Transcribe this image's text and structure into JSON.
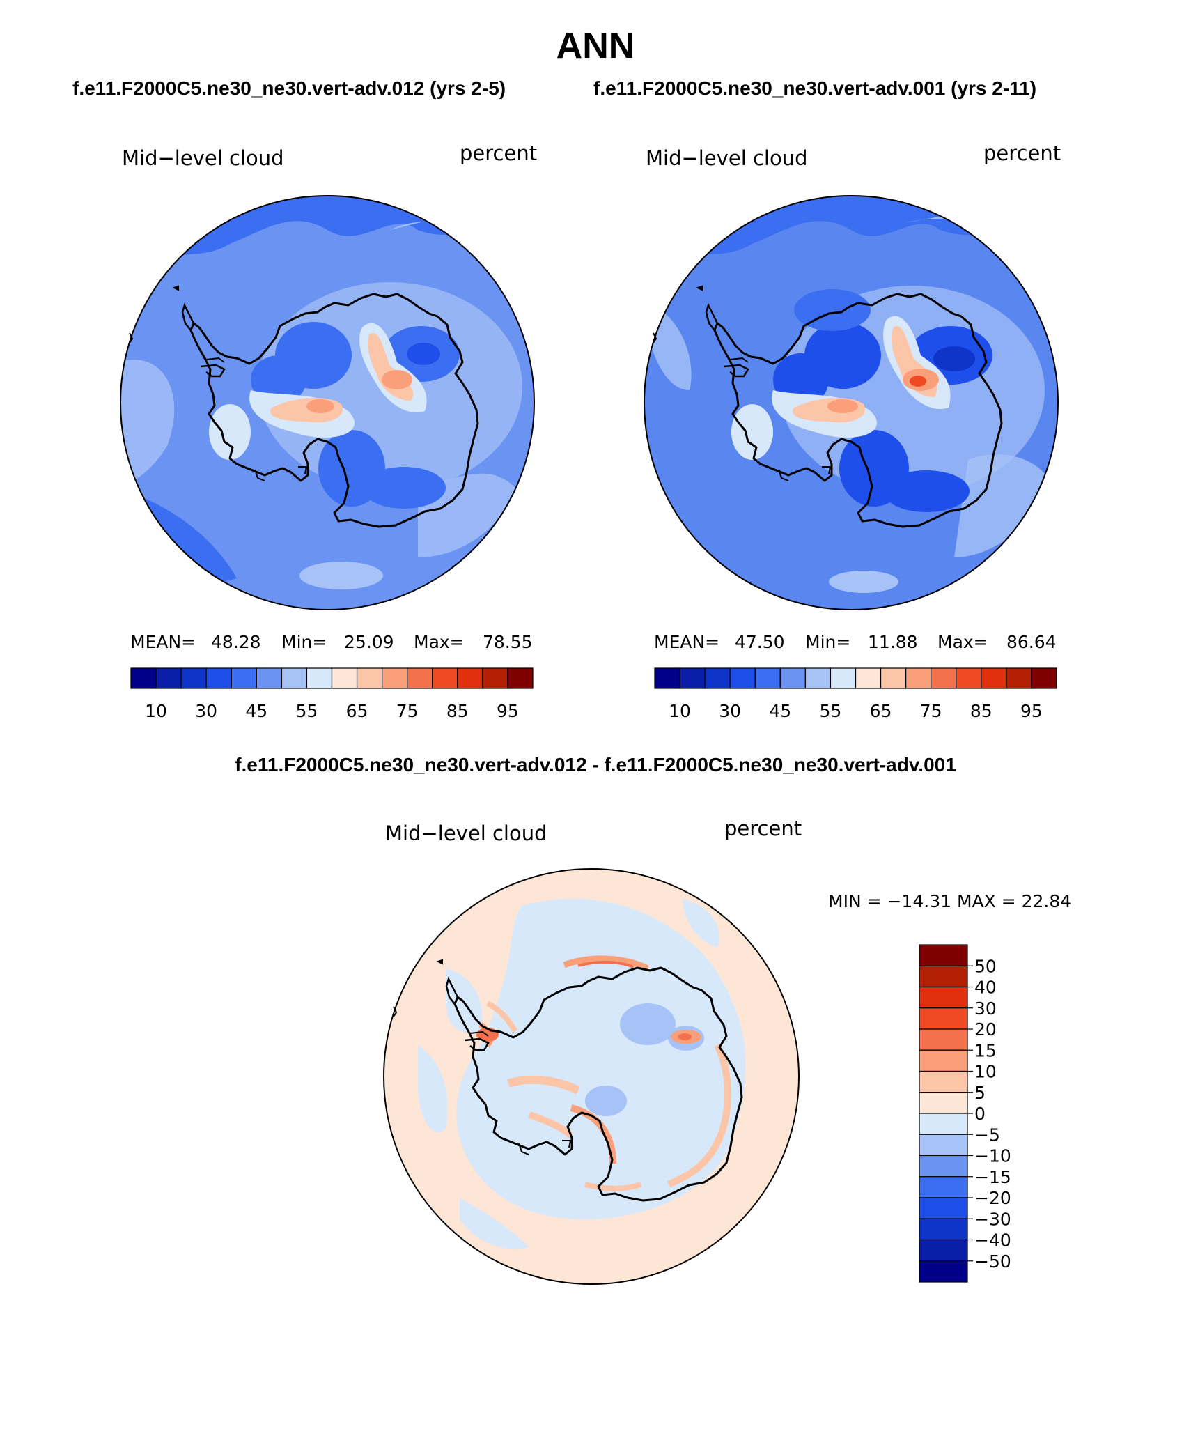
{
  "title": "ANN",
  "subtitle_left": "f.e11.F2000C5.ne30_ne30.vert-adv.012 (yrs 2-5)",
  "subtitle_right": "f.e11.F2000C5.ne30_ne30.vert-adv.001 (yrs 2-11)",
  "diff_title": "f.e11.F2000C5.ne30_ne30.vert-adv.012 - f.e11.F2000C5.ne30_ne30.vert-adv.001",
  "panels": [
    {
      "variable": "Mid−level cloud",
      "units": "percent",
      "stats": {
        "mean_label": "MEAN=",
        "mean": "48.28",
        "min_label": "Min=",
        "min": "25.09",
        "max_label": "Max=",
        "max": "78.55"
      }
    },
    {
      "variable": "Mid−level cloud",
      "units": "percent",
      "stats": {
        "mean_label": "MEAN=",
        "mean": "47.50",
        "min_label": "Min=",
        "min": "11.88",
        "max_label": "Max=",
        "max": "86.64"
      }
    }
  ],
  "diff_panel": {
    "variable": "Mid−level cloud",
    "units": "percent",
    "minmax": "MIN = −14.31  MAX =   22.84"
  },
  "horizontal_colorbar": {
    "colors": [
      "#00008b",
      "#0a1fa8",
      "#0f35c8",
      "#1f4fea",
      "#3b6ef0",
      "#6a93f2",
      "#a6c2f7",
      "#d8e8fb",
      "#fde6d6",
      "#fcc5a8",
      "#f9a07b",
      "#f4714d",
      "#ef4a23",
      "#e0300e",
      "#b32004",
      "#800000"
    ],
    "tick_labels": [
      "10",
      "30",
      "45",
      "55",
      "65",
      "75",
      "85",
      "95"
    ]
  },
  "vertical_colorbar": {
    "colors_top_to_bottom": [
      "#800000",
      "#b32004",
      "#e0300e",
      "#ef4a23",
      "#f4714d",
      "#f9a07b",
      "#fcc5a8",
      "#fde6d6",
      "#d8e8fb",
      "#a6c2f7",
      "#6a93f2",
      "#3b6ef0",
      "#1f4fea",
      "#0f35c8",
      "#0a1fa8",
      "#00008b"
    ],
    "tick_labels": [
      "50",
      "40",
      "30",
      "20",
      "15",
      "10",
      "5",
      "0",
      "−5",
      "−10",
      "−15",
      "−20",
      "−30",
      "−40",
      "−50"
    ]
  },
  "map_colors": {
    "left_background": "#6a93f2",
    "right_background": "#5a86f0",
    "diff_background": "#fde6d6",
    "coast": "#000000"
  }
}
